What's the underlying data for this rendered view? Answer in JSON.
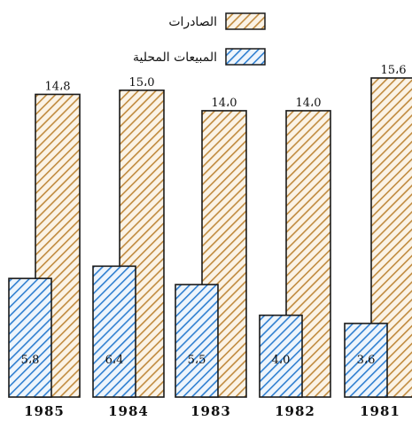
{
  "chart_data": {
    "type": "bar",
    "categories": [
      "1985",
      "1984",
      "1983",
      "1982",
      "1981"
    ],
    "series": [
      {
        "name": "الصادرات",
        "values": [
          14.8,
          15.0,
          14.0,
          14.0,
          15.6
        ],
        "labels": [
          "14،8",
          "15،0",
          "14،0",
          "14،0",
          "15،6"
        ],
        "color": "#c08a3e",
        "stroke": "#1a1a1a"
      },
      {
        "name": "المبيعات المحلية",
        "values": [
          5.8,
          6.4,
          5.5,
          4.0,
          3.6
        ],
        "labels": [
          "5،8",
          "6،4",
          "5،5",
          "4،0",
          "3،6"
        ],
        "color": "#2f7fd0",
        "stroke": "#1a1a1a"
      }
    ],
    "legend": "top-center",
    "ylim": [
      0,
      16
    ],
    "grid": false,
    "title": "",
    "xlabel": "",
    "ylabel": ""
  }
}
